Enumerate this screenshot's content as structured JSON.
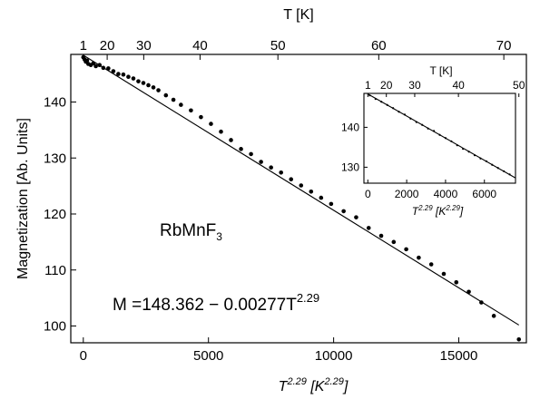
{
  "chart_data": [
    {
      "type": "scatter",
      "title": "",
      "xlabel": "T^2.29 [K^2.29]",
      "ylabel": "Magnetization [Ab. Units]",
      "x2label": "T [K]",
      "xlim": [
        -500,
        17700
      ],
      "ylim": [
        97,
        148.5
      ],
      "x_ticks": [
        "0",
        "5000",
        "10000",
        "15000"
      ],
      "y_ticks": [
        "100",
        "110",
        "120",
        "130",
        "140"
      ],
      "top_axis_ticks": [
        {
          "label": "1",
          "T": 1
        },
        {
          "label": "20",
          "T": 20
        },
        {
          "label": "30",
          "T": 30
        },
        {
          "label": "40",
          "T": 40
        },
        {
          "label": "50",
          "T": 50
        },
        {
          "label": "60",
          "T": 60
        },
        {
          "label": "70",
          "T": 70
        }
      ],
      "sample_label": {
        "main": "RbMnF",
        "sub": "3"
      },
      "equation": {
        "prefix": "M =148.362 − 0.00277T",
        "exponent": "2.29"
      },
      "fit": {
        "intercept": 148.362,
        "slope": -0.00277
      },
      "series": [
        {
          "marker": "filled-circle",
          "x": [
            0,
            50,
            100,
            150,
            200,
            300,
            400,
            500,
            650,
            800,
            1000,
            1200,
            1400,
            1600,
            1800,
            2000,
            2200,
            2400,
            2600,
            2800,
            3000,
            3300,
            3600,
            3900,
            4300,
            4700,
            5100,
            5500,
            5900,
            6300,
            6700,
            7100,
            7500,
            7900,
            8300,
            8700,
            9100,
            9500,
            9900,
            10400,
            10900,
            11400,
            11900,
            12400,
            12900,
            13400,
            13900,
            14400,
            14900,
            15400,
            15900,
            16400,
            17400
          ],
          "y": [
            148.0,
            147.6,
            147.2,
            147.4,
            146.8,
            146.6,
            146.9,
            146.4,
            146.6,
            146.1,
            146.0,
            145.5,
            145.0,
            144.9,
            144.5,
            144.2,
            143.7,
            143.4,
            143.0,
            142.6,
            142.1,
            141.2,
            140.4,
            139.5,
            138.5,
            137.3,
            136.1,
            134.7,
            133.2,
            131.6,
            130.7,
            129.3,
            128.3,
            127.4,
            126.2,
            125.1,
            124.0,
            122.9,
            121.8,
            120.5,
            119.4,
            117.5,
            116.1,
            115.0,
            113.7,
            112.2,
            111.0,
            109.3,
            107.8,
            106.1,
            104.2,
            101.8,
            97.6
          ]
        }
      ]
    },
    {
      "type": "scatter",
      "title": "",
      "xlabel": "T^2.29 [K^2.29]",
      "ylabel": "",
      "x2label": "T [K]",
      "xlim": [
        -200,
        7600
      ],
      "ylim": [
        126,
        148.5
      ],
      "x_ticks": [
        "0",
        "2000",
        "4000",
        "6000"
      ],
      "y_ticks": [
        "130",
        "140"
      ],
      "top_axis_ticks": [
        {
          "label": "1",
          "T": 1
        },
        {
          "label": "20",
          "T": 20
        },
        {
          "label": "30",
          "T": 30
        },
        {
          "label": "40",
          "T": 40
        },
        {
          "label": "50",
          "T": 50
        }
      ],
      "fit": {
        "intercept": 148.362,
        "slope": -0.00277
      },
      "series": [
        {
          "marker": "small-dot",
          "x": [
            100,
            400,
            700,
            1000,
            1300,
            1600,
            1900,
            2200,
            2500,
            2800,
            3100,
            3400,
            3700,
            4000,
            4300,
            4600,
            4900,
            5200,
            5500,
            5800,
            6100,
            6400,
            6700,
            7000,
            7300
          ],
          "y": [
            148.0,
            147.1,
            146.4,
            145.6,
            144.8,
            143.9,
            143.2,
            142.2,
            141.3,
            140.6,
            139.7,
            139.1,
            138.1,
            137.3,
            136.5,
            135.5,
            134.6,
            133.9,
            133.0,
            132.2,
            131.5,
            130.6,
            129.8,
            129.0,
            128.2
          ]
        }
      ]
    }
  ]
}
